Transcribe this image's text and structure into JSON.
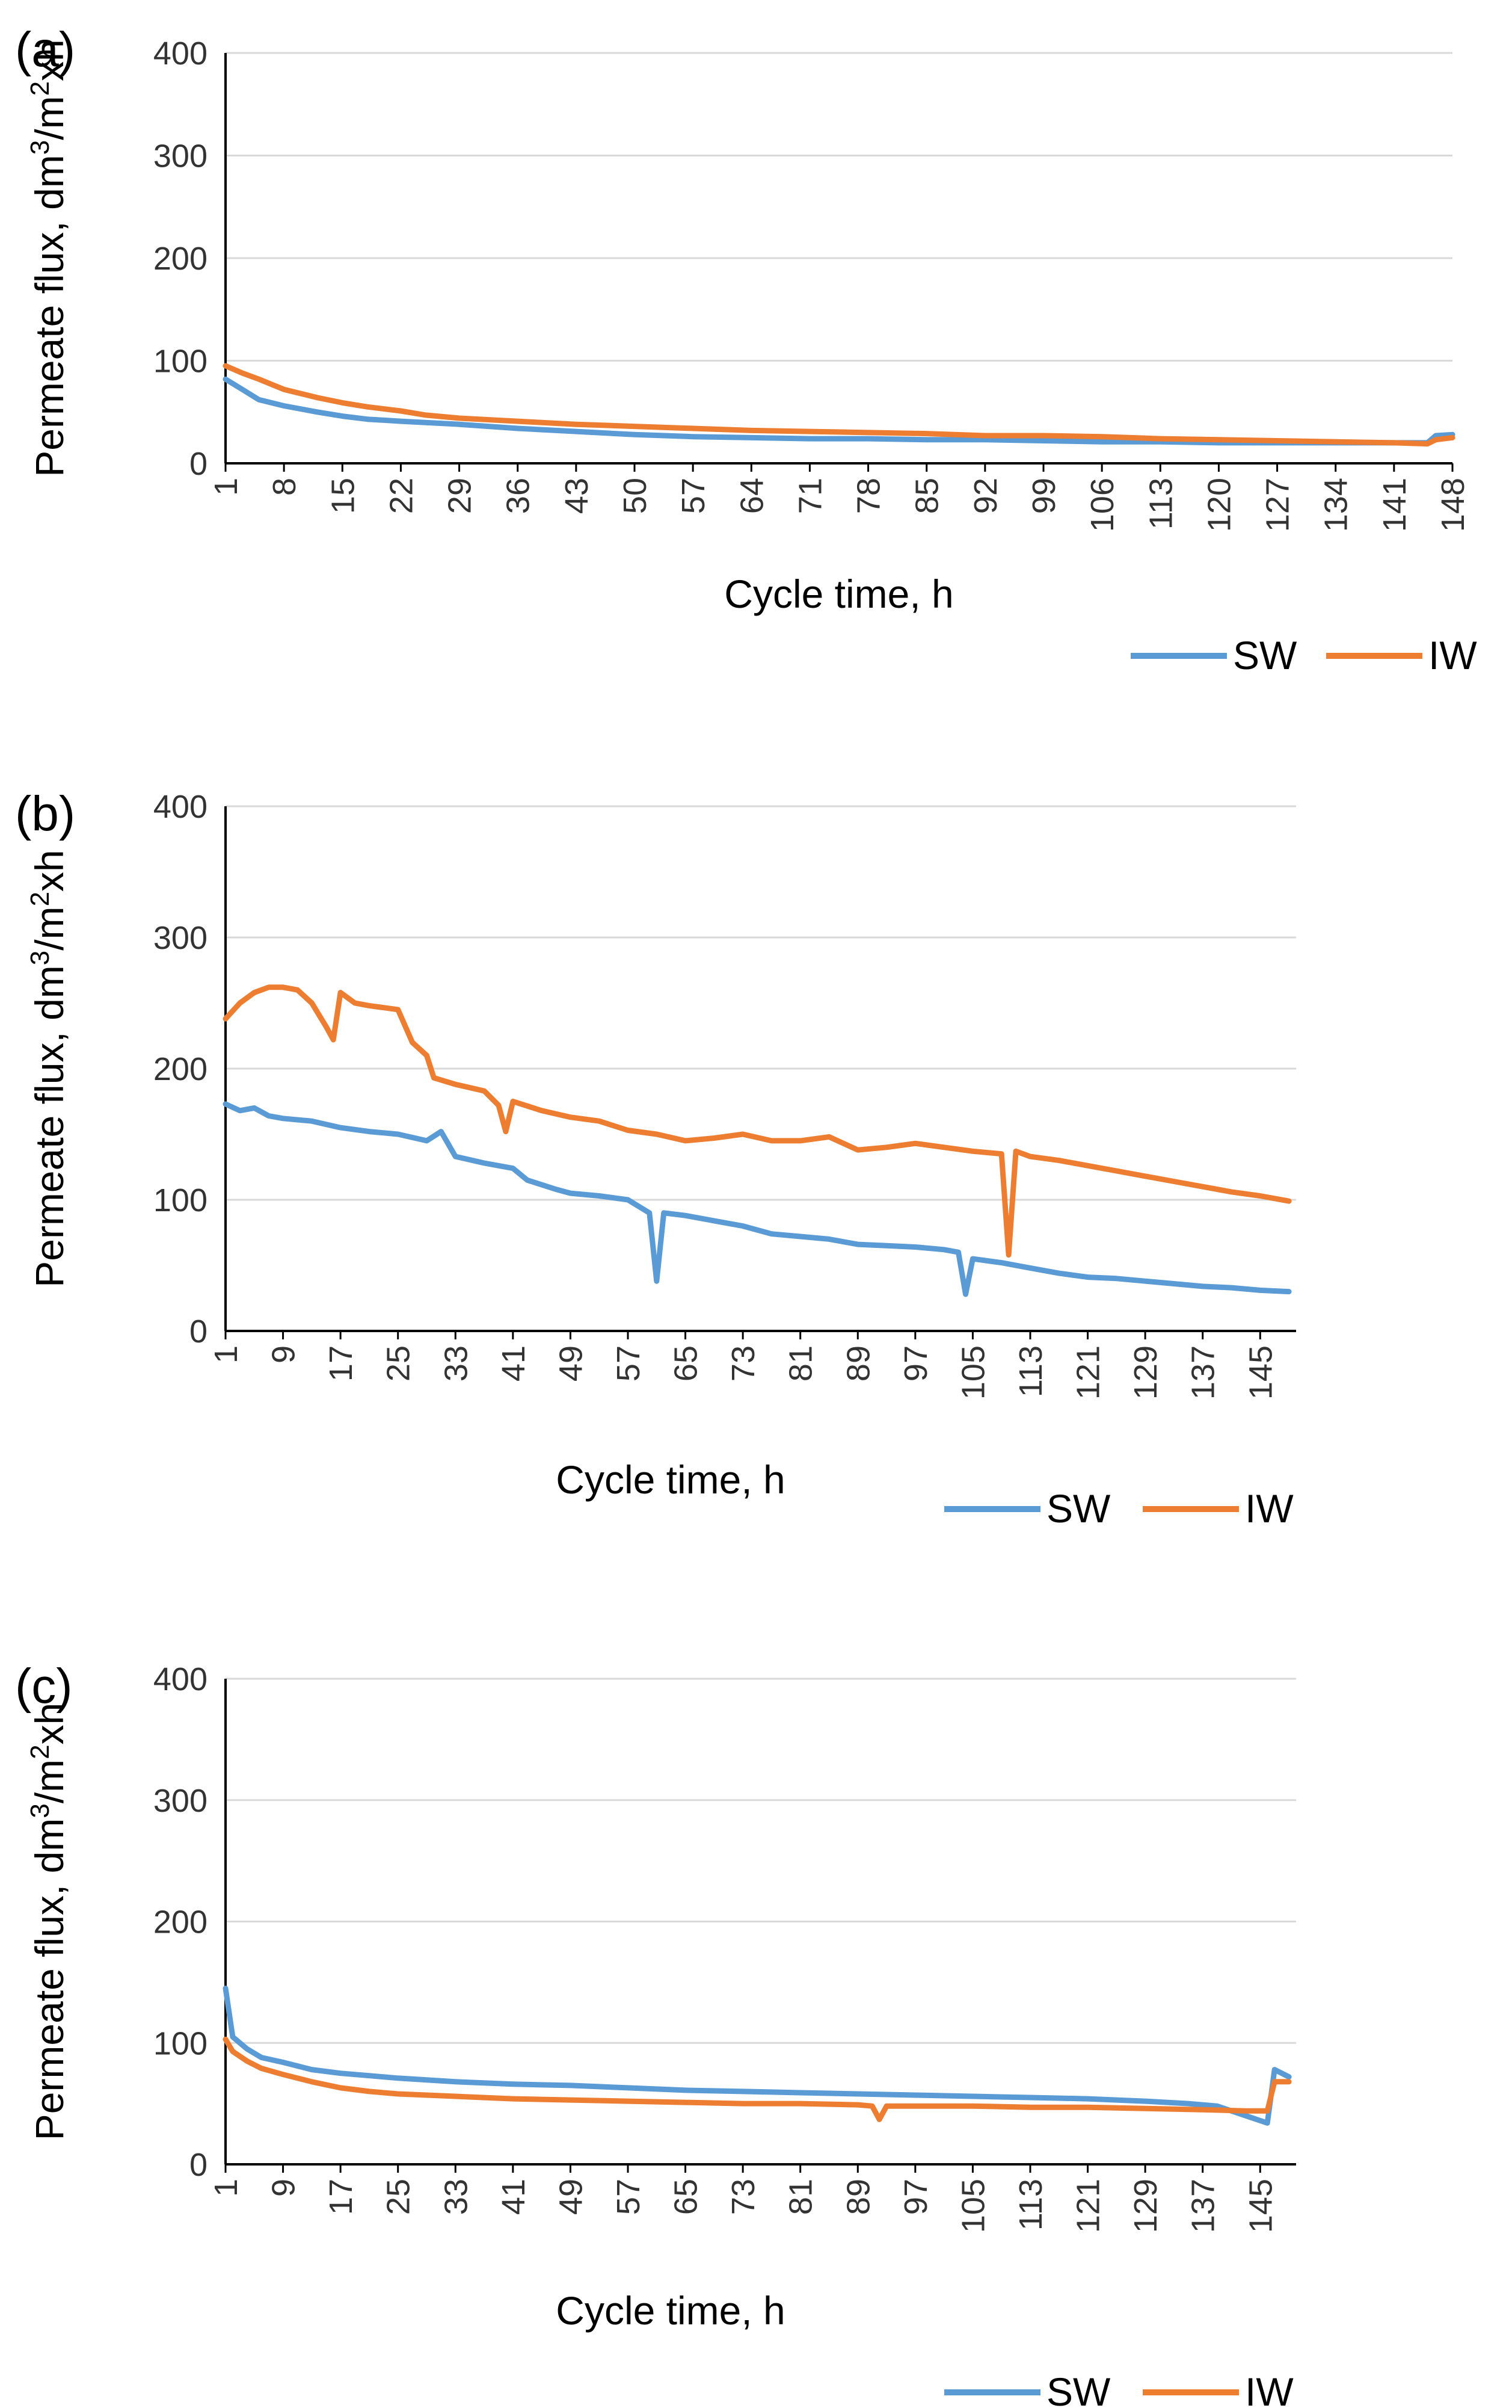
{
  "figure": {
    "series_colors": {
      "SW": "#5B9BD5",
      "IW": "#ED7D31"
    }
  },
  "chart_data": [
    {
      "type": "line",
      "panel_label": "(a)",
      "title": "",
      "xlabel": "Cycle time, h",
      "ylabel": "Permeate flux, dm3/m2xh",
      "ylabel_parts": [
        "Permeate flux, dm",
        "3",
        "/m",
        "2",
        "xh"
      ],
      "ylim": [
        0,
        400
      ],
      "yticks": [
        "0",
        "100",
        "200",
        "300",
        "400"
      ],
      "xlim": [
        1,
        148
      ],
      "xticks": [
        "1",
        "8",
        "15",
        "22",
        "29",
        "36",
        "43",
        "50",
        "57",
        "64",
        "71",
        "78",
        "85",
        "92",
        "99",
        "106",
        "113",
        "120",
        "127",
        "134",
        "141",
        "148"
      ],
      "legend": [
        "SW",
        "IW"
      ],
      "legend_position": "bottom-right",
      "series": [
        {
          "name": "SW",
          "color": "#5B9BD5",
          "points": [
            [
              1,
              82
            ],
            [
              3,
              72
            ],
            [
              5,
              62
            ],
            [
              8,
              56
            ],
            [
              12,
              50
            ],
            [
              15,
              46
            ],
            [
              18,
              43
            ],
            [
              22,
              41
            ],
            [
              29,
              38
            ],
            [
              36,
              34
            ],
            [
              43,
              31
            ],
            [
              50,
              28
            ],
            [
              57,
              26
            ],
            [
              64,
              25
            ],
            [
              71,
              24
            ],
            [
              78,
              24
            ],
            [
              85,
              23
            ],
            [
              92,
              23
            ],
            [
              99,
              22
            ],
            [
              106,
              21
            ],
            [
              113,
              21
            ],
            [
              120,
              20
            ],
            [
              127,
              20
            ],
            [
              134,
              20
            ],
            [
              141,
              20
            ],
            [
              145,
              20
            ],
            [
              146,
              27
            ],
            [
              148,
              28
            ]
          ]
        },
        {
          "name": "IW",
          "color": "#ED7D31",
          "points": [
            [
              1,
              95
            ],
            [
              3,
              88
            ],
            [
              5,
              82
            ],
            [
              8,
              72
            ],
            [
              12,
              64
            ],
            [
              15,
              59
            ],
            [
              18,
              55
            ],
            [
              22,
              51
            ],
            [
              25,
              47
            ],
            [
              29,
              44
            ],
            [
              36,
              41
            ],
            [
              43,
              38
            ],
            [
              50,
              36
            ],
            [
              57,
              34
            ],
            [
              64,
              32
            ],
            [
              71,
              31
            ],
            [
              78,
              30
            ],
            [
              85,
              29
            ],
            [
              92,
              27
            ],
            [
              99,
              27
            ],
            [
              106,
              26
            ],
            [
              113,
              24
            ],
            [
              120,
              23
            ],
            [
              127,
              22
            ],
            [
              134,
              21
            ],
            [
              141,
              20
            ],
            [
              145,
              19
            ],
            [
              146,
              23
            ],
            [
              148,
              25
            ]
          ]
        }
      ]
    },
    {
      "type": "line",
      "panel_label": "(b)",
      "title": "",
      "xlabel": "Cycle time, h",
      "ylabel": "Permeate flux, dm3/m2xh",
      "ylabel_parts": [
        "Permeate flux, dm",
        "3",
        "/m",
        "2",
        "xh"
      ],
      "ylim": [
        0,
        400
      ],
      "yticks": [
        "0",
        "100",
        "200",
        "300",
        "400"
      ],
      "xlim": [
        1,
        150
      ],
      "xticks": [
        "1",
        "9",
        "17",
        "25",
        "33",
        "41",
        "49",
        "57",
        "65",
        "73",
        "81",
        "89",
        "97",
        "105",
        "113",
        "121",
        "129",
        "137",
        "145"
      ],
      "legend": [
        "SW",
        "IW"
      ],
      "legend_position": "bottom-right",
      "series": [
        {
          "name": "SW",
          "color": "#5B9BD5",
          "points": [
            [
              1,
              173
            ],
            [
              3,
              168
            ],
            [
              5,
              170
            ],
            [
              7,
              164
            ],
            [
              9,
              162
            ],
            [
              13,
              160
            ],
            [
              17,
              155
            ],
            [
              21,
              152
            ],
            [
              25,
              150
            ],
            [
              29,
              145
            ],
            [
              31,
              152
            ],
            [
              33,
              133
            ],
            [
              37,
              128
            ],
            [
              41,
              124
            ],
            [
              43,
              115
            ],
            [
              47,
              108
            ],
            [
              49,
              105
            ],
            [
              53,
              103
            ],
            [
              57,
              100
            ],
            [
              60,
              90
            ],
            [
              61,
              38
            ],
            [
              62,
              90
            ],
            [
              65,
              88
            ],
            [
              69,
              84
            ],
            [
              73,
              80
            ],
            [
              77,
              74
            ],
            [
              81,
              72
            ],
            [
              85,
              70
            ],
            [
              89,
              66
            ],
            [
              93,
              65
            ],
            [
              97,
              64
            ],
            [
              101,
              62
            ],
            [
              103,
              60
            ],
            [
              104,
              28
            ],
            [
              105,
              55
            ],
            [
              109,
              52
            ],
            [
              113,
              48
            ],
            [
              117,
              44
            ],
            [
              121,
              41
            ],
            [
              125,
              40
            ],
            [
              129,
              38
            ],
            [
              133,
              36
            ],
            [
              137,
              34
            ],
            [
              141,
              33
            ],
            [
              145,
              31
            ],
            [
              149,
              30
            ]
          ]
        },
        {
          "name": "IW",
          "color": "#ED7D31",
          "points": [
            [
              1,
              238
            ],
            [
              3,
              250
            ],
            [
              5,
              258
            ],
            [
              7,
              262
            ],
            [
              9,
              262
            ],
            [
              11,
              260
            ],
            [
              13,
              250
            ],
            [
              15,
              232
            ],
            [
              16,
              222
            ],
            [
              17,
              258
            ],
            [
              19,
              250
            ],
            [
              21,
              248
            ],
            [
              25,
              245
            ],
            [
              27,
              220
            ],
            [
              29,
              210
            ],
            [
              30,
              193
            ],
            [
              33,
              188
            ],
            [
              37,
              183
            ],
            [
              39,
              172
            ],
            [
              40,
              152
            ],
            [
              41,
              175
            ],
            [
              45,
              168
            ],
            [
              49,
              163
            ],
            [
              53,
              160
            ],
            [
              57,
              153
            ],
            [
              61,
              150
            ],
            [
              65,
              145
            ],
            [
              69,
              147
            ],
            [
              73,
              150
            ],
            [
              77,
              145
            ],
            [
              81,
              145
            ],
            [
              85,
              148
            ],
            [
              89,
              138
            ],
            [
              93,
              140
            ],
            [
              97,
              143
            ],
            [
              101,
              140
            ],
            [
              105,
              137
            ],
            [
              109,
              135
            ],
            [
              110,
              58
            ],
            [
              111,
              137
            ],
            [
              113,
              133
            ],
            [
              117,
              130
            ],
            [
              121,
              126
            ],
            [
              125,
              122
            ],
            [
              129,
              118
            ],
            [
              133,
              114
            ],
            [
              137,
              110
            ],
            [
              141,
              106
            ],
            [
              145,
              103
            ],
            [
              149,
              99
            ]
          ]
        }
      ]
    },
    {
      "type": "line",
      "panel_label": "(c)",
      "title": "",
      "xlabel": "Cycle time, h",
      "ylabel": "Permeate flux, dm3/m2xh",
      "ylabel_parts": [
        "Permeate flux, dm",
        "3",
        "/m",
        "2",
        "xh"
      ],
      "ylim": [
        0,
        400
      ],
      "yticks": [
        "0",
        "100",
        "200",
        "300",
        "400"
      ],
      "xlim": [
        1,
        150
      ],
      "xticks": [
        "1",
        "9",
        "17",
        "25",
        "33",
        "41",
        "49",
        "57",
        "65",
        "73",
        "81",
        "89",
        "97",
        "105",
        "113",
        "121",
        "129",
        "137",
        "145"
      ],
      "legend": [
        "SW",
        "IW"
      ],
      "legend_position": "bottom-right",
      "series": [
        {
          "name": "SW",
          "color": "#5B9BD5",
          "points": [
            [
              1,
              145
            ],
            [
              2,
              105
            ],
            [
              4,
              95
            ],
            [
              6,
              88
            ],
            [
              9,
              84
            ],
            [
              13,
              78
            ],
            [
              17,
              75
            ],
            [
              21,
              73
            ],
            [
              25,
              71
            ],
            [
              33,
              68
            ],
            [
              41,
              66
            ],
            [
              49,
              65
            ],
            [
              57,
              63
            ],
            [
              65,
              61
            ],
            [
              73,
              60
            ],
            [
              81,
              59
            ],
            [
              89,
              58
            ],
            [
              97,
              57
            ],
            [
              105,
              56
            ],
            [
              113,
              55
            ],
            [
              121,
              54
            ],
            [
              129,
              52
            ],
            [
              135,
              50
            ],
            [
              139,
              48
            ],
            [
              143,
              40
            ],
            [
              146,
              34
            ],
            [
              147,
              78
            ],
            [
              149,
              72
            ]
          ]
        },
        {
          "name": "IW",
          "color": "#ED7D31",
          "points": [
            [
              1,
              103
            ],
            [
              2,
              93
            ],
            [
              4,
              85
            ],
            [
              6,
              79
            ],
            [
              9,
              74
            ],
            [
              13,
              68
            ],
            [
              17,
              63
            ],
            [
              21,
              60
            ],
            [
              25,
              58
            ],
            [
              33,
              56
            ],
            [
              41,
              54
            ],
            [
              49,
              53
            ],
            [
              57,
              52
            ],
            [
              65,
              51
            ],
            [
              73,
              50
            ],
            [
              81,
              50
            ],
            [
              89,
              49
            ],
            [
              91,
              48
            ],
            [
              92,
              37
            ],
            [
              93,
              48
            ],
            [
              97,
              48
            ],
            [
              105,
              48
            ],
            [
              113,
              47
            ],
            [
              121,
              47
            ],
            [
              129,
              46
            ],
            [
              137,
              45
            ],
            [
              143,
              44
            ],
            [
              146,
              44
            ],
            [
              147,
              68
            ],
            [
              149,
              68
            ]
          ]
        }
      ]
    }
  ]
}
